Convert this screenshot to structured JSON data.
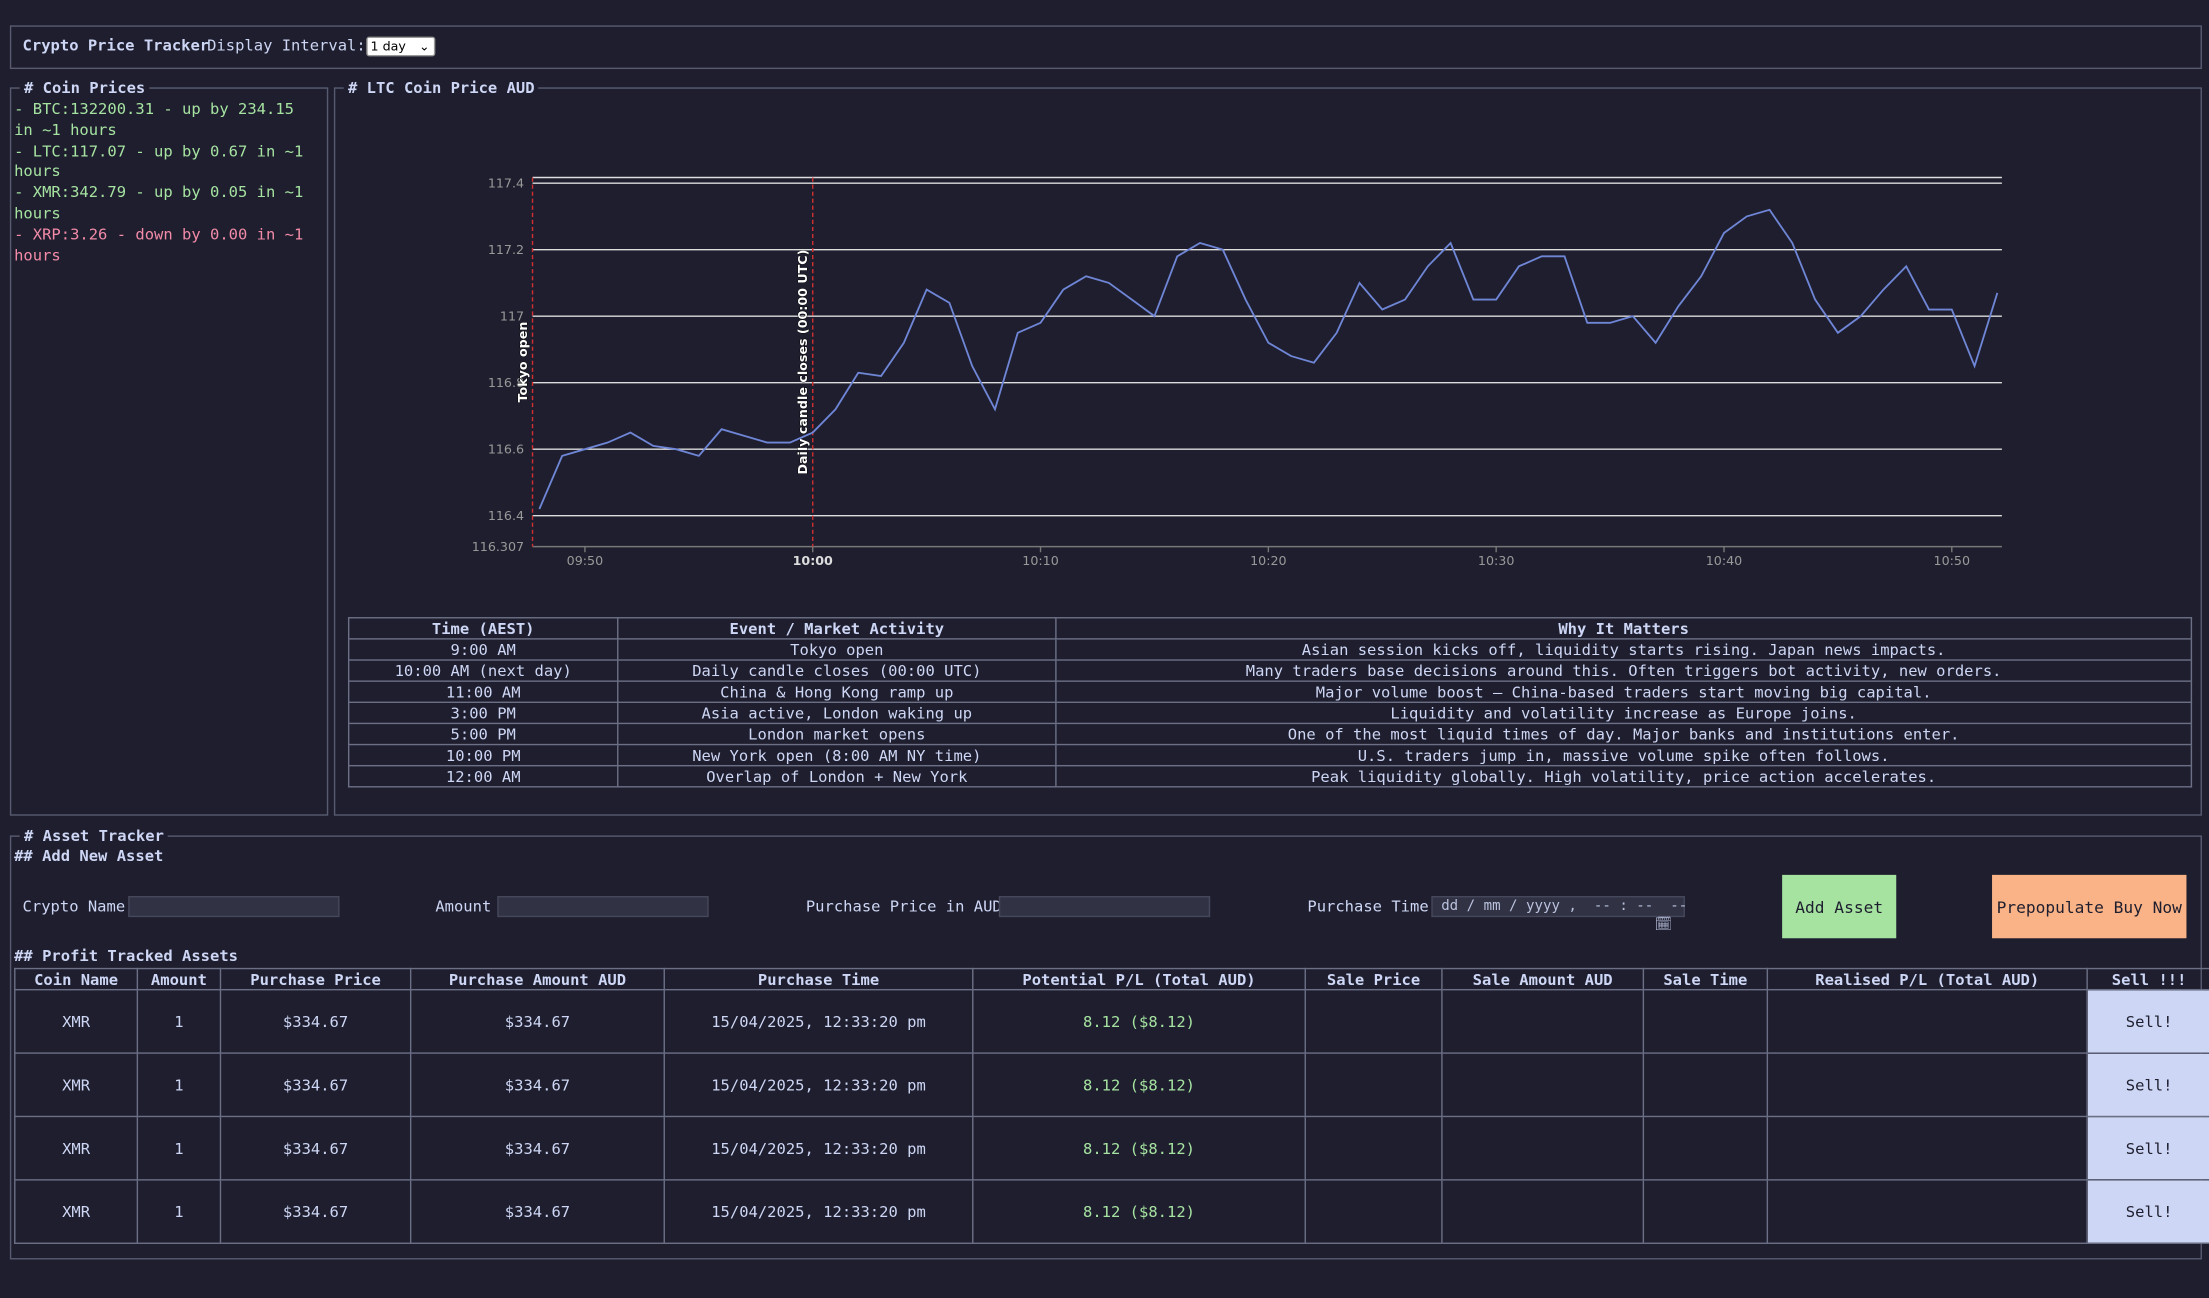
{
  "header": {
    "title": "Crypto Price Tracker",
    "interval_label": "Display Interval:",
    "interval_value": "1 day"
  },
  "coin_prices": {
    "title": "# Coin Prices",
    "items": [
      {
        "text": "- BTC:132200.31 - up by 234.15 in ~1 hours",
        "trend": "up"
      },
      {
        "text": "- LTC:117.07 - up by 0.67 in ~1 hours",
        "trend": "up"
      },
      {
        "text": "- XMR:342.79 - up by 0.05 in ~1 hours",
        "trend": "up"
      },
      {
        "text": "- XRP:3.26 - down by 0.00 in ~1 hours",
        "trend": "down"
      }
    ]
  },
  "chart_data": {
    "type": "line",
    "title": "# LTC Coin Price AUD",
    "color": "#6f86d6",
    "grid": true,
    "x": [
      "09:48",
      "09:49",
      "09:50",
      "09:51",
      "09:52",
      "09:53",
      "09:54",
      "09:55",
      "09:56",
      "09:57",
      "09:58",
      "09:59",
      "10:00",
      "10:01",
      "10:02",
      "10:03",
      "10:04",
      "10:05",
      "10:06",
      "10:07",
      "10:08",
      "10:09",
      "10:10",
      "10:11",
      "10:12",
      "10:13",
      "10:14",
      "10:15",
      "10:16",
      "10:17",
      "10:18",
      "10:19",
      "10:20",
      "10:21",
      "10:22",
      "10:23",
      "10:24",
      "10:25",
      "10:26",
      "10:27",
      "10:28",
      "10:29",
      "10:30",
      "10:31",
      "10:32",
      "10:33",
      "10:34",
      "10:35",
      "10:36",
      "10:37",
      "10:38",
      "10:39",
      "10:40",
      "10:41",
      "10:42",
      "10:43",
      "10:44",
      "10:45",
      "10:46",
      "10:47",
      "10:48",
      "10:49",
      "10:50",
      "10:51",
      "10:52"
    ],
    "values": [
      116.42,
      116.58,
      116.6,
      116.62,
      116.65,
      116.61,
      116.6,
      116.58,
      116.66,
      116.64,
      116.62,
      116.62,
      116.65,
      116.72,
      116.83,
      116.82,
      116.92,
      117.08,
      117.04,
      116.85,
      116.72,
      116.95,
      116.98,
      117.08,
      117.12,
      117.1,
      117.05,
      117.0,
      117.18,
      117.22,
      117.2,
      117.05,
      116.92,
      116.88,
      116.86,
      116.95,
      117.1,
      117.02,
      117.05,
      117.15,
      117.22,
      117.05,
      117.05,
      117.15,
      117.18,
      117.18,
      116.98,
      116.98,
      117.0,
      116.92,
      117.03,
      117.12,
      117.25,
      117.3,
      117.32,
      117.22,
      117.05,
      116.95,
      117.0,
      117.08,
      117.15,
      117.02,
      117.02,
      116.85,
      117.07
    ],
    "xlim": [
      "09:47.7",
      "10:52.2"
    ],
    "xticks": [
      "09:50",
      "10:00",
      "10:10",
      "10:20",
      "10:30",
      "10:40",
      "10:50"
    ],
    "ylim": [
      116.307,
      117.417
    ],
    "yticks": [
      116.307,
      116.4,
      116.6,
      116.8,
      117,
      117.2,
      117.4
    ],
    "annotations": [
      {
        "x": "09:47.7",
        "label": "Tokyo open"
      },
      {
        "x": "10:00",
        "label": "Daily candle closes (00:00 UTC)"
      }
    ]
  },
  "events_table": {
    "headers": [
      "Time (AEST)",
      "Event / Market Activity",
      "Why It Matters"
    ],
    "rows": [
      [
        "9:00 AM",
        "Tokyo open",
        "Asian session kicks off, liquidity starts rising. Japan news impacts."
      ],
      [
        "10:00 AM (next day)",
        "Daily candle closes (00:00 UTC)",
        "Many traders base decisions around this. Often triggers bot activity, new orders."
      ],
      [
        "11:00 AM",
        "China & Hong Kong ramp up",
        "Major volume boost — China-based traders start moving big capital."
      ],
      [
        "3:00 PM",
        "Asia active, London waking up",
        "Liquidity and volatility increase as Europe joins."
      ],
      [
        "5:00 PM",
        "London market opens",
        "One of the most liquid times of day. Major banks and institutions enter."
      ],
      [
        "10:00 PM",
        "New York open (8:00 AM NY time)",
        "U.S. traders jump in, massive volume spike often follows."
      ],
      [
        "12:00 AM",
        "Overlap of London + New York",
        "Peak liquidity globally. High volatility, price action accelerates."
      ]
    ]
  },
  "asset_tracker": {
    "title": "# Asset Tracker",
    "add_title": "## Add New Asset",
    "fields": [
      "Crypto Name",
      "Amount",
      "Purchase Price in AUD",
      "Purchase Time"
    ],
    "date_placeholder": "dd / mm / yyyy ,  -- : --  --",
    "add_button": "Add Asset",
    "prepopulate_button": "Prepopulate Buy Now",
    "table_title": "## Profit Tracked Assets",
    "headers": [
      "Coin Name",
      "Amount",
      "Purchase Price",
      "Purchase Amount AUD",
      "Purchase Time",
      "Potential P/L (Total AUD)",
      "Sale Price",
      "Sale Amount AUD",
      "Sale Time",
      "Realised P/L (Total AUD)",
      "Sell !!!"
    ],
    "sell_label": "Sell!",
    "rows": [
      [
        "XMR",
        "1",
        "$334.67",
        "$334.67",
        "15/04/2025, 12:33:20 pm",
        "8.12 ($8.12)"
      ],
      [
        "XMR",
        "1",
        "$334.67",
        "$334.67",
        "15/04/2025, 12:33:20 pm",
        "8.12 ($8.12)"
      ],
      [
        "XMR",
        "1",
        "$334.67",
        "$334.67",
        "15/04/2025, 12:33:20 pm",
        "8.12 ($8.12)"
      ],
      [
        "XMR",
        "1",
        "$334.67",
        "$334.67",
        "15/04/2025, 12:33:20 pm",
        "8.12 ($8.12)"
      ]
    ]
  }
}
